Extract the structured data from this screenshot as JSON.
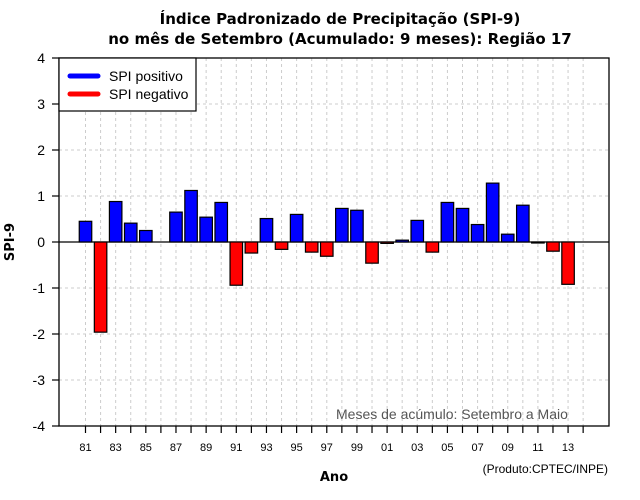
{
  "chart_data": {
    "type": "bar",
    "title": "Índice Padronizado de Precipitação (SPI-9)",
    "subtitle": "no mês de Setembro (Acumulado: 9 meses): Região 17",
    "xlabel": "Ano",
    "ylabel": "SPI-9",
    "ylim": [
      -4,
      4
    ],
    "yticks": [
      "4",
      "3",
      "2",
      "1",
      "0",
      "-1",
      "-2",
      "-3",
      "-4"
    ],
    "ytick_values": [
      4,
      3,
      2,
      1,
      0,
      -1,
      -2,
      -3,
      -4
    ],
    "xticks_labeled": [
      "81",
      "83",
      "85",
      "87",
      "89",
      "91",
      "93",
      "95",
      "97",
      "99",
      "01",
      "03",
      "05",
      "07",
      "09",
      "11",
      "13"
    ],
    "grid": true,
    "legend_position": "top-left",
    "legend": [
      {
        "label": "SPI positivo",
        "color": "#0000ff"
      },
      {
        "label": "SPI negativo",
        "color": "#ff0000"
      }
    ],
    "annotation": "Meses de acúmulo: Setembro a Maio",
    "credit": "(Produto:CPTEC/INPE)",
    "categories": [
      "1981",
      "1982",
      "1983",
      "1984",
      "1985",
      "1986",
      "1987",
      "1988",
      "1989",
      "1990",
      "1991",
      "1992",
      "1993",
      "1994",
      "1995",
      "1996",
      "1997",
      "1998",
      "1999",
      "2000",
      "2001",
      "2002",
      "2003",
      "2004",
      "2005",
      "2006",
      "2007",
      "2008",
      "2009",
      "2010",
      "2011",
      "2012",
      "2013"
    ],
    "values": [
      0.45,
      -1.96,
      0.88,
      0.41,
      0.25,
      null,
      0.65,
      1.12,
      0.54,
      0.86,
      -0.94,
      -0.24,
      0.51,
      -0.16,
      0.6,
      -0.22,
      -0.31,
      0.73,
      0.69,
      -0.46,
      -0.03,
      0.04,
      0.47,
      -0.22,
      0.86,
      0.73,
      0.38,
      1.28,
      0.17,
      0.8,
      -0.02,
      -0.2,
      -0.92
    ],
    "colors": {
      "positive": "#0000ff",
      "negative": "#ff0000",
      "grid": "#cccccc",
      "axis": "#000000"
    }
  }
}
